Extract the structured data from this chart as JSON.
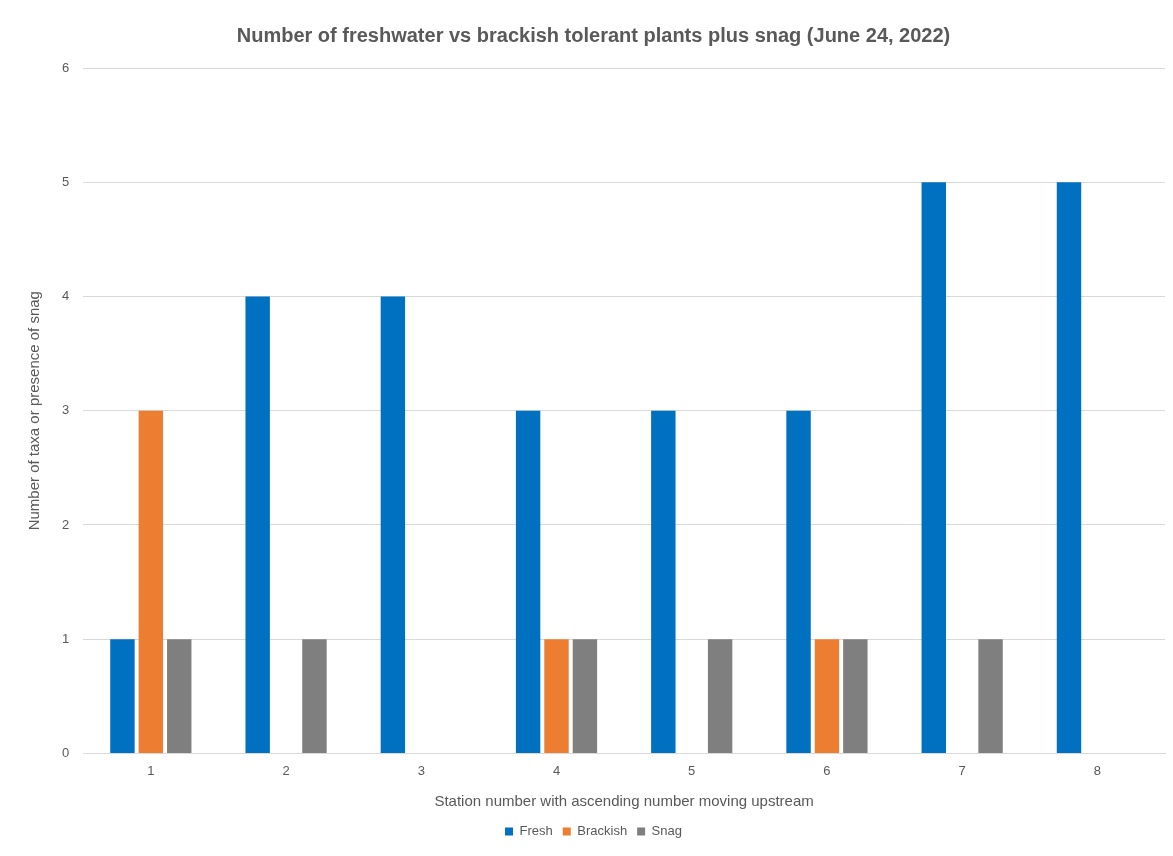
{
  "chart_data": {
    "type": "bar",
    "title": "Number of freshwater vs brackish tolerant plants plus snag (June 24, 2022)",
    "xlabel": "Station number with ascending number moving upstream",
    "ylabel": "Number of taxa or presence of snag",
    "categories": [
      "1",
      "2",
      "3",
      "4",
      "5",
      "6",
      "7",
      "8"
    ],
    "series": [
      {
        "name": "Fresh",
        "color": "#0070c0",
        "values": [
          1,
          4,
          4,
          3,
          3,
          3,
          5,
          5
        ]
      },
      {
        "name": "Brackish",
        "color": "#ed7d31",
        "values": [
          3,
          0,
          0,
          1,
          0,
          1,
          0,
          0
        ]
      },
      {
        "name": "Snag",
        "color": "#7f7f7f",
        "values": [
          1,
          1,
          0,
          1,
          1,
          1,
          1,
          0
        ]
      }
    ],
    "ylim": [
      0,
      6
    ],
    "yticks": [
      0,
      1,
      2,
      3,
      4,
      5,
      6
    ],
    "grid": "y",
    "legend": "bottom"
  }
}
